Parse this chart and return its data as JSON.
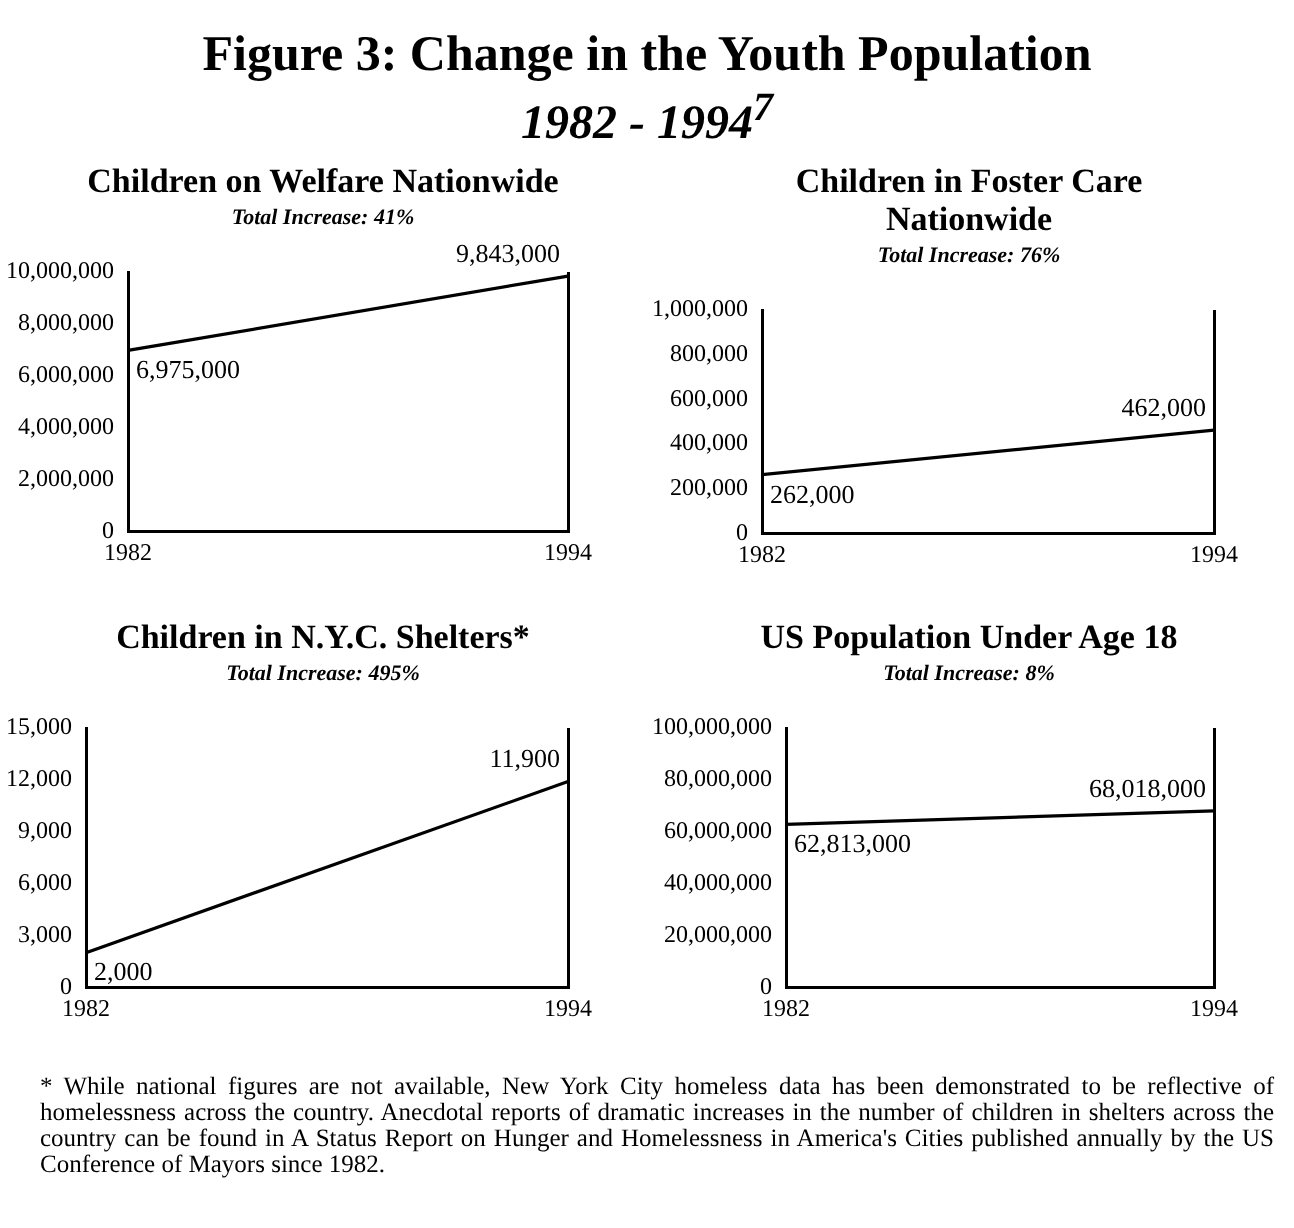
{
  "chart_data": [
    {
      "type": "line",
      "title": "Children on Welfare Nationwide",
      "subtitle": "Total Increase: 41%",
      "annotations": [
        "Figure 3: Change in the Youth Population",
        "1982 - 1994$^{7}$"
      ],
      "categories": [
        "1982",
        "1994"
      ],
      "values": [
        6975000,
        9843000
      ],
      "value_labels": [
        "6,975,000",
        "9,843,000"
      ],
      "color": "#000000",
      "ylim": [
        0,
        10000000
      ],
      "yticks": [
        {
          "value": 0,
          "label": "0"
        },
        {
          "value": 2000000,
          "label": "2,000,000"
        },
        {
          "value": 4000000,
          "label": "4,000,000"
        },
        {
          "value": 6000000,
          "label": "6,000,000"
        },
        {
          "value": 8000000,
          "label": "8,000,000"
        },
        {
          "value": 10000000,
          "label": "10,000,000"
        }
      ],
      "grid": "x",
      "legend": false,
      "marker": "none"
    },
    {
      "type": "line",
      "title": "Children in Foster Care Nationwide",
      "subtitle": "Total Increase: 76%",
      "categories": [
        "1982",
        "1994"
      ],
      "values": [
        262000,
        462000
      ],
      "value_labels": [
        "262,000",
        "462,000"
      ],
      "color": "#000000",
      "ylim": [
        0,
        1000000
      ],
      "yticks": [
        {
          "value": 0,
          "label": "0"
        },
        {
          "value": 200000,
          "label": "200,000"
        },
        {
          "value": 400000,
          "label": "400,000"
        },
        {
          "value": 600000,
          "label": "600,000"
        },
        {
          "value": 800000,
          "label": "800,000"
        },
        {
          "value": 1000000,
          "label": "1,000,000"
        }
      ],
      "grid": "x",
      "legend": false,
      "marker": "none"
    },
    {
      "type": "line",
      "title": "Children in N.Y.C. Shelters*",
      "subtitle": "Total Increase: 495%",
      "categories": [
        "1982",
        "1994"
      ],
      "values": [
        2000,
        11900
      ],
      "value_labels": [
        "2,000",
        "11,900"
      ],
      "color": "#000000",
      "ylim": [
        0,
        15000
      ],
      "yticks": [
        {
          "value": 0,
          "label": "0"
        },
        {
          "value": 3000,
          "label": "3,000"
        },
        {
          "value": 6000,
          "label": "6,000"
        },
        {
          "value": 9000,
          "label": "9,000"
        },
        {
          "value": 12000,
          "label": "12,000"
        },
        {
          "value": 15000,
          "label": "15,000"
        }
      ],
      "grid": "x",
      "legend": false,
      "marker": "none"
    },
    {
      "type": "line",
      "title": "US Population Under Age 18",
      "subtitle": "Total Increase: 8%",
      "annotations": [
        "* While national figures are not available, New York City homeless data has been demonstrated to be reflective of homelessness across the country. Anecdotal reports of dramatic increases in the number of children in shelters across the country can be found in A Status Report on Hunger and Homelessness in America's Cities published annually by the US Conference of Mayors since 1982."
      ],
      "categories": [
        "1982",
        "1994"
      ],
      "values": [
        62813000,
        68018000
      ],
      "value_labels": [
        "62,813,000",
        "68,018,000"
      ],
      "color": "#000000",
      "ylim": [
        0,
        100000000
      ],
      "yticks": [
        {
          "value": 0,
          "label": "0"
        },
        {
          "value": 20000000,
          "label": "20,000,000"
        },
        {
          "value": 40000000,
          "label": "40,000,000"
        },
        {
          "value": 60000000,
          "label": "60,000,000"
        },
        {
          "value": 80000000,
          "label": "80,000,000"
        },
        {
          "value": 100000000,
          "label": "100,000,000"
        }
      ],
      "grid": "x",
      "legend": false,
      "marker": "none"
    }
  ]
}
